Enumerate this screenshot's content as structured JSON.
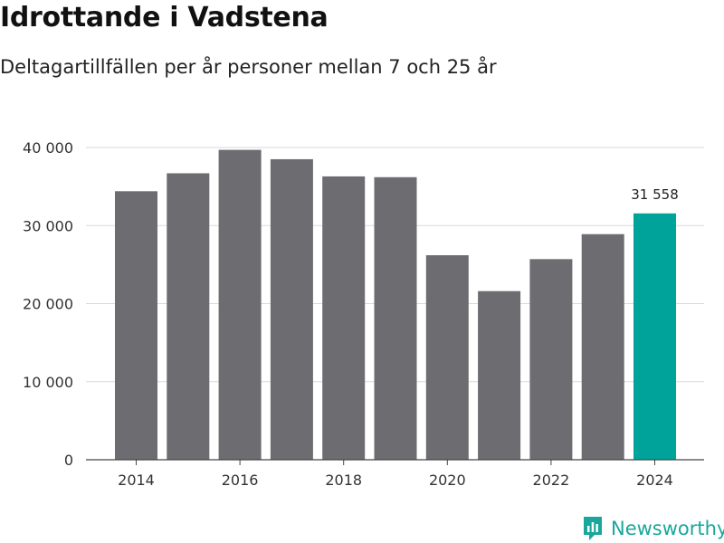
{
  "title": "Idrottande i Vadstena",
  "subtitle": "Deltagartillfällen per år personer mellan 7 och 25 år",
  "brand": {
    "name": "Newsworthy",
    "color": "#19a79b",
    "icon": "newsworthy-logo-icon"
  },
  "colors": {
    "bar": "#6d6c71",
    "highlight": "#00a39a",
    "grid": "#d9d9d9",
    "axis": "#444444",
    "text": "#333333"
  },
  "chart_data": {
    "type": "bar",
    "categories": [
      2014,
      2015,
      2016,
      2017,
      2018,
      2019,
      2020,
      2021,
      2022,
      2023,
      2024
    ],
    "values": [
      34400,
      36700,
      39700,
      38500,
      36300,
      36200,
      26200,
      21600,
      25700,
      28900,
      31558
    ],
    "highlight_index": 10,
    "value_labels": [
      {
        "index": 10,
        "text": "31 558"
      }
    ],
    "x_tick_values": [
      2014,
      2016,
      2018,
      2020,
      2022,
      2024
    ],
    "x_tick_labels": [
      "2014",
      "2016",
      "2018",
      "2020",
      "2022",
      "2024"
    ],
    "y_ticks": [
      0,
      10000,
      20000,
      30000,
      40000
    ],
    "y_tick_labels": [
      "0",
      "10 000",
      "20 000",
      "30 000",
      "40 000"
    ],
    "ylim": [
      0,
      40000
    ],
    "grid": true,
    "xlabel": "",
    "ylabel": ""
  }
}
